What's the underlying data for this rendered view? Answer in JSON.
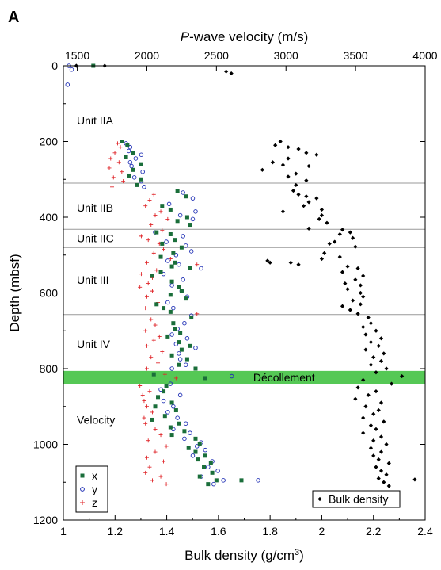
{
  "chart_data": {
    "type": "scatter",
    "panel_label": "A",
    "ylabel": "Depth (mbsf)",
    "ylim": [
      0,
      1200
    ],
    "y_inverted": true,
    "y_ticks": [
      "0",
      "200",
      "400",
      "600",
      "800",
      "1000",
      "1200"
    ],
    "x_bottom": {
      "label_pre": "Bulk density (g/cm",
      "label_sup": "3",
      "label_post": ")",
      "lim": [
        1.0,
        2.4
      ],
      "ticks": [
        "1",
        "1.2",
        "1.4",
        "1.6",
        "1.8",
        "2",
        "2.2",
        "2.4"
      ]
    },
    "x_top": {
      "label_italic": "P",
      "label_rest": "-wave velocity (m/s)",
      "lim": [
        1400,
        4000
      ],
      "ticks": [
        "1500",
        "2000",
        "2500",
        "3000",
        "3500",
        "4000"
      ]
    },
    "unit_boundaries": [
      310,
      432,
      480,
      657
    ],
    "units": [
      {
        "label": "Unit IIA",
        "depth": 145
      },
      {
        "label": "Unit IIB",
        "depth": 375
      },
      {
        "label": "Unit IIC",
        "depth": 455
      },
      {
        "label": "Unit III",
        "depth": 565
      },
      {
        "label": "Unit IV",
        "depth": 735
      },
      {
        "label": "Velocity",
        "depth": 935
      }
    ],
    "decollement": {
      "label": "Décollement",
      "top": 806,
      "bottom": 840,
      "color": "#55c855"
    },
    "legend": {
      "entries": [
        {
          "label": "x",
          "color": "#1a6e3a"
        },
        {
          "label": "y",
          "color": "#1f2fb5"
        },
        {
          "label": "z",
          "color": "#e0262a"
        }
      ],
      "density_label": "Bulk density"
    },
    "bulk_density": {
      "name": "Bulk density",
      "color": "#000000",
      "points": [
        [
          1.05,
          0
        ],
        [
          1.16,
          0
        ],
        [
          1.63,
          15
        ],
        [
          1.65,
          20
        ],
        [
          1.84,
          200
        ],
        [
          1.82,
          210
        ],
        [
          1.87,
          215
        ],
        [
          1.91,
          220
        ],
        [
          1.94,
          230
        ],
        [
          1.98,
          235
        ],
        [
          1.87,
          245
        ],
        [
          1.81,
          255
        ],
        [
          1.85,
          262
        ],
        [
          1.95,
          265
        ],
        [
          1.77,
          275
        ],
        [
          1.9,
          285
        ],
        [
          1.87,
          293
        ],
        [
          1.94,
          303
        ],
        [
          1.9,
          315
        ],
        [
          1.89,
          330
        ],
        [
          1.91,
          340
        ],
        [
          1.94,
          345
        ],
        [
          1.98,
          350
        ],
        [
          1.95,
          360
        ],
        [
          1.93,
          370
        ],
        [
          2.0,
          380
        ],
        [
          1.85,
          385
        ],
        [
          2.0,
          395
        ],
        [
          1.99,
          405
        ],
        [
          2.02,
          415
        ],
        [
          1.95,
          430
        ],
        [
          2.08,
          433
        ],
        [
          2.11,
          440
        ],
        [
          2.07,
          445
        ],
        [
          2.12,
          455
        ],
        [
          2.05,
          465
        ],
        [
          2.03,
          470
        ],
        [
          2.13,
          478
        ],
        [
          2.01,
          495
        ],
        [
          2.07,
          505
        ],
        [
          2.0,
          510
        ],
        [
          1.79,
          515
        ],
        [
          1.8,
          520
        ],
        [
          1.88,
          520
        ],
        [
          1.91,
          525
        ],
        [
          2.1,
          530
        ],
        [
          2.14,
          535
        ],
        [
          2.08,
          545
        ],
        [
          2.16,
          555
        ],
        [
          2.13,
          565
        ],
        [
          2.09,
          575
        ],
        [
          2.15,
          580
        ],
        [
          2.1,
          590
        ],
        [
          2.15,
          600
        ],
        [
          2.16,
          610
        ],
        [
          2.12,
          620
        ],
        [
          2.15,
          630
        ],
        [
          2.08,
          635
        ],
        [
          2.11,
          645
        ],
        [
          2.14,
          655
        ],
        [
          2.18,
          665
        ],
        [
          2.19,
          680
        ],
        [
          2.16,
          690
        ],
        [
          2.21,
          700
        ],
        [
          2.17,
          710
        ],
        [
          2.23,
          720
        ],
        [
          2.19,
          730
        ],
        [
          2.22,
          740
        ],
        [
          2.17,
          750
        ],
        [
          2.24,
          760
        ],
        [
          2.2,
          770
        ],
        [
          2.23,
          780
        ],
        [
          2.19,
          790
        ],
        [
          2.25,
          800
        ],
        [
          2.21,
          810
        ],
        [
          2.31,
          820
        ],
        [
          2.16,
          830
        ],
        [
          2.27,
          840
        ],
        [
          2.14,
          850
        ],
        [
          2.21,
          860
        ],
        [
          2.18,
          870
        ],
        [
          2.13,
          880
        ],
        [
          2.23,
          890
        ],
        [
          2.17,
          900
        ],
        [
          2.22,
          910
        ],
        [
          2.2,
          920
        ],
        [
          2.16,
          930
        ],
        [
          2.24,
          940
        ],
        [
          2.19,
          950
        ],
        [
          2.21,
          960
        ],
        [
          2.16,
          970
        ],
        [
          2.23,
          980
        ],
        [
          2.2,
          990
        ],
        [
          2.25,
          1000
        ],
        [
          2.19,
          1010
        ],
        [
          2.23,
          1020
        ],
        [
          2.2,
          1030
        ],
        [
          2.22,
          1040
        ],
        [
          2.26,
          1050
        ],
        [
          2.21,
          1060
        ],
        [
          2.23,
          1070
        ],
        [
          2.25,
          1080
        ],
        [
          2.22,
          1090
        ],
        [
          2.36,
          1093
        ],
        [
          2.24,
          1100
        ],
        [
          2.26,
          1110
        ]
      ]
    },
    "velocity_x": {
      "name": "x",
      "color": "#1a6e3a",
      "points": [
        [
          1615,
          0
        ],
        [
          1820,
          200
        ],
        [
          1860,
          210
        ],
        [
          1900,
          230
        ],
        [
          1850,
          240
        ],
        [
          1960,
          260
        ],
        [
          1900,
          275
        ],
        [
          1870,
          290
        ],
        [
          1960,
          300
        ],
        [
          1930,
          315
        ],
        [
          2220,
          330
        ],
        [
          2280,
          345
        ],
        [
          2110,
          370
        ],
        [
          2170,
          380
        ],
        [
          2290,
          400
        ],
        [
          2220,
          410
        ],
        [
          2310,
          420
        ],
        [
          2070,
          440
        ],
        [
          2170,
          445
        ],
        [
          2200,
          460
        ],
        [
          2110,
          470
        ],
        [
          2250,
          480
        ],
        [
          2190,
          495
        ],
        [
          2100,
          505
        ],
        [
          2200,
          520
        ],
        [
          2180,
          530
        ],
        [
          2310,
          535
        ],
        [
          2100,
          545
        ],
        [
          2040,
          555
        ],
        [
          2180,
          570
        ],
        [
          2230,
          585
        ],
        [
          2250,
          595
        ],
        [
          2170,
          605
        ],
        [
          2280,
          615
        ],
        [
          2070,
          630
        ],
        [
          2120,
          640
        ],
        [
          2170,
          650
        ],
        [
          2320,
          665
        ],
        [
          2190,
          680
        ],
        [
          2200,
          695
        ],
        [
          2240,
          705
        ],
        [
          2150,
          715
        ],
        [
          2230,
          730
        ],
        [
          2310,
          740
        ],
        [
          2250,
          750
        ],
        [
          2180,
          765
        ],
        [
          2290,
          775
        ],
        [
          2230,
          790
        ],
        [
          2350,
          800
        ],
        [
          2050,
          815
        ],
        [
          2420,
          825
        ],
        [
          2140,
          845
        ],
        [
          2120,
          860
        ],
        [
          2080,
          875
        ],
        [
          2180,
          890
        ],
        [
          2060,
          900
        ],
        [
          2210,
          910
        ],
        [
          2130,
          925
        ],
        [
          2040,
          935
        ],
        [
          2230,
          945
        ],
        [
          2170,
          955
        ],
        [
          2270,
          965
        ],
        [
          2180,
          975
        ],
        [
          2350,
          985
        ],
        [
          2380,
          1000
        ],
        [
          2300,
          1010
        ],
        [
          2350,
          1020
        ],
        [
          2420,
          1030
        ],
        [
          2370,
          1040
        ],
        [
          2460,
          1050
        ],
        [
          2410,
          1060
        ],
        [
          2470,
          1075
        ],
        [
          2380,
          1085
        ],
        [
          2500,
          1095
        ],
        [
          2680,
          1095
        ],
        [
          2440,
          1105
        ]
      ]
    },
    "velocity_y": {
      "name": "y",
      "color": "#1f2fb5",
      "points": [
        [
          1440,
          0
        ],
        [
          1460,
          10
        ],
        [
          1430,
          50
        ],
        [
          1850,
          205
        ],
        [
          1880,
          215
        ],
        [
          1870,
          225
        ],
        [
          1960,
          235
        ],
        [
          1920,
          245
        ],
        [
          1880,
          255
        ],
        [
          1890,
          265
        ],
        [
          1970,
          280
        ],
        [
          1910,
          295
        ],
        [
          1960,
          305
        ],
        [
          1980,
          320
        ],
        [
          2260,
          335
        ],
        [
          2330,
          350
        ],
        [
          2160,
          365
        ],
        [
          2350,
          385
        ],
        [
          2240,
          395
        ],
        [
          2330,
          405
        ],
        [
          2060,
          440
        ],
        [
          2260,
          450
        ],
        [
          2140,
          465
        ],
        [
          2280,
          475
        ],
        [
          2320,
          490
        ],
        [
          2210,
          500
        ],
        [
          2150,
          515
        ],
        [
          2230,
          525
        ],
        [
          2390,
          535
        ],
        [
          2120,
          550
        ],
        [
          2260,
          565
        ],
        [
          2180,
          580
        ],
        [
          2250,
          595
        ],
        [
          2290,
          610
        ],
        [
          2150,
          625
        ],
        [
          2190,
          640
        ],
        [
          2320,
          660
        ],
        [
          2270,
          680
        ],
        [
          2220,
          695
        ],
        [
          2180,
          710
        ],
        [
          2290,
          720
        ],
        [
          2210,
          735
        ],
        [
          2350,
          745
        ],
        [
          2230,
          760
        ],
        [
          2240,
          775
        ],
        [
          2280,
          790
        ],
        [
          2180,
          800
        ],
        [
          2610,
          820
        ],
        [
          2170,
          840
        ],
        [
          2100,
          855
        ],
        [
          2240,
          870
        ],
        [
          2120,
          885
        ],
        [
          2190,
          900
        ],
        [
          2150,
          915
        ],
        [
          2220,
          930
        ],
        [
          2280,
          945
        ],
        [
          2190,
          960
        ],
        [
          2310,
          970
        ],
        [
          2270,
          985
        ],
        [
          2390,
          995
        ],
        [
          2360,
          1005
        ],
        [
          2420,
          1015
        ],
        [
          2330,
          1030
        ],
        [
          2470,
          1045
        ],
        [
          2440,
          1060
        ],
        [
          2510,
          1070
        ],
        [
          2390,
          1085
        ],
        [
          2550,
          1095
        ],
        [
          2800,
          1095
        ],
        [
          2480,
          1105
        ]
      ]
    },
    "velocity_z": {
      "name": "z",
      "color": "#e0262a",
      "points": [
        [
          1790,
          205
        ],
        [
          1810,
          215
        ],
        [
          1770,
          230
        ],
        [
          1740,
          245
        ],
        [
          1800,
          255
        ],
        [
          1730,
          270
        ],
        [
          1820,
          280
        ],
        [
          1760,
          295
        ],
        [
          1830,
          305
        ],
        [
          1750,
          320
        ],
        [
          2050,
          340
        ],
        [
          2020,
          355
        ],
        [
          1990,
          370
        ],
        [
          2100,
          385
        ],
        [
          2060,
          395
        ],
        [
          2150,
          405
        ],
        [
          2030,
          420
        ],
        [
          2110,
          435
        ],
        [
          1960,
          450
        ],
        [
          2010,
          460
        ],
        [
          2090,
          470
        ],
        [
          2120,
          485
        ],
        [
          2050,
          495
        ],
        [
          2170,
          510
        ],
        [
          2000,
          520
        ],
        [
          2360,
          525
        ],
        [
          2070,
          540
        ],
        [
          1960,
          550
        ],
        [
          2040,
          560
        ],
        [
          2010,
          575
        ],
        [
          1950,
          585
        ],
        [
          2040,
          595
        ],
        [
          2000,
          610
        ],
        [
          2080,
          625
        ],
        [
          1990,
          640
        ],
        [
          2360,
          655
        ],
        [
          2030,
          670
        ],
        [
          2060,
          685
        ],
        [
          1990,
          700
        ],
        [
          2090,
          715
        ],
        [
          2050,
          725
        ],
        [
          2000,
          740
        ],
        [
          2110,
          755
        ],
        [
          2030,
          770
        ],
        [
          2080,
          785
        ],
        [
          2000,
          800
        ],
        [
          2130,
          815
        ],
        [
          2210,
          825
        ],
        [
          1950,
          845
        ],
        [
          2020,
          860
        ],
        [
          1970,
          870
        ],
        [
          1980,
          885
        ],
        [
          2000,
          900
        ],
        [
          2040,
          915
        ],
        [
          1980,
          930
        ],
        [
          1990,
          945
        ],
        [
          2060,
          960
        ],
        [
          2100,
          975
        ],
        [
          2010,
          990
        ],
        [
          2140,
          1005
        ],
        [
          2060,
          1020
        ],
        [
          2000,
          1035
        ],
        [
          2120,
          1045
        ],
        [
          2020,
          1060
        ],
        [
          1990,
          1075
        ],
        [
          2100,
          1085
        ],
        [
          2040,
          1095
        ],
        [
          2140,
          1105
        ]
      ]
    }
  }
}
